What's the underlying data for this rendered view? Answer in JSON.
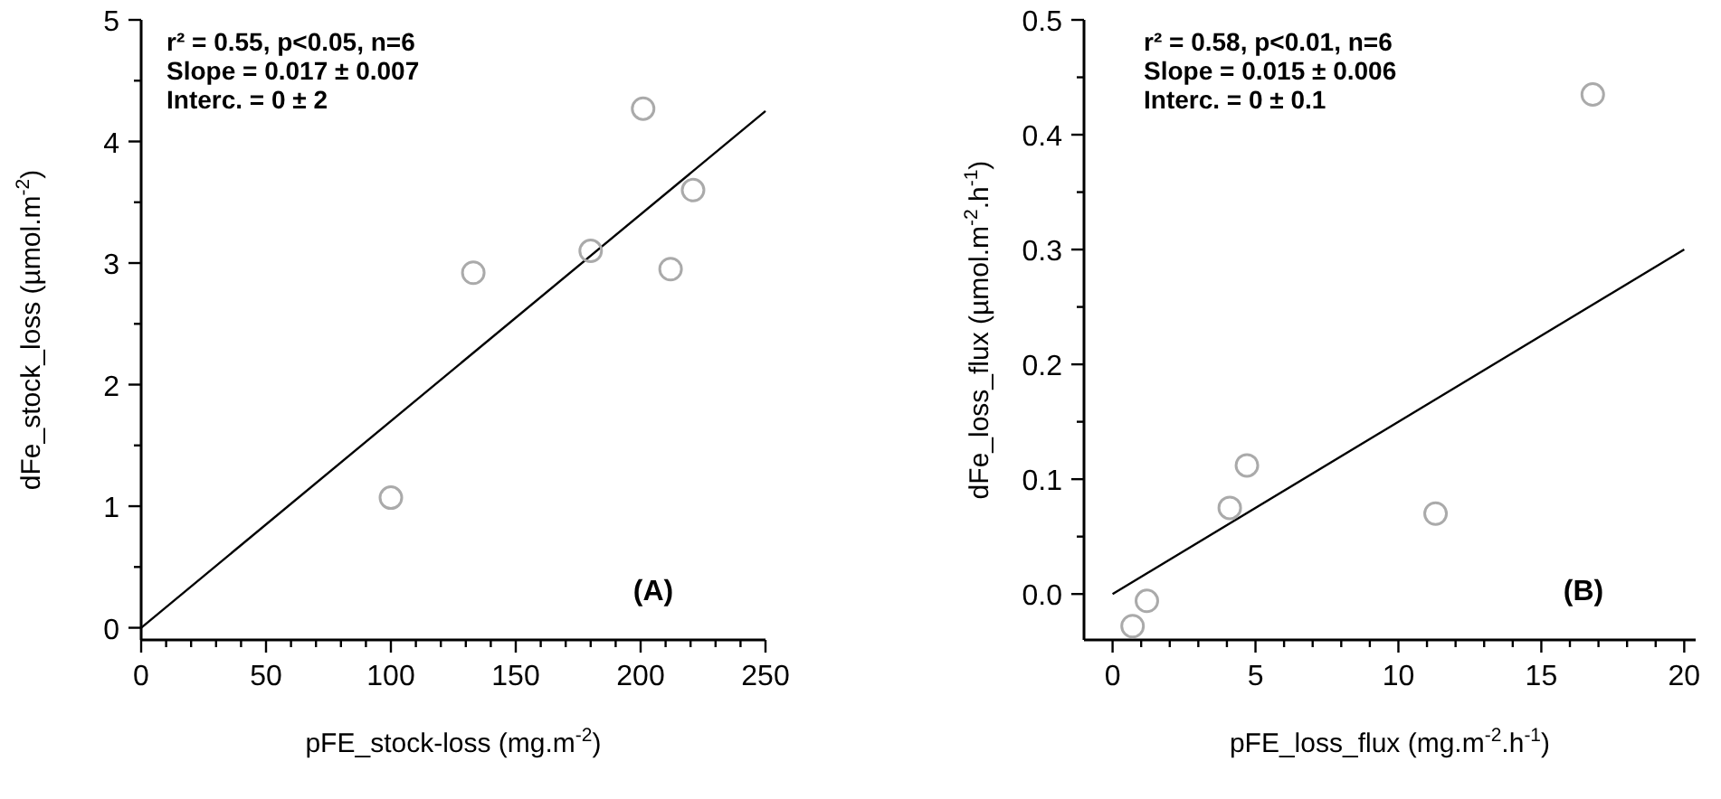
{
  "chart_data": [
    {
      "type": "scatter",
      "xlabel": "pFE_stock-loss (mg.m$^{-2}$)",
      "ylabel": "dFe_stock_loss (µmol.m$^{-2}$)",
      "xlim": [
        0,
        250
      ],
      "ylim": [
        -0.1,
        5
      ],
      "xticks": [
        0,
        {
          "value": 10,
          "label": null
        },
        {
          "value": 20,
          "label": null
        },
        {
          "value": 30,
          "label": null
        },
        {
          "value": 40,
          "label": null
        },
        50,
        {
          "value": 60,
          "label": null
        },
        {
          "value": 70,
          "label": null
        },
        {
          "value": 80,
          "label": null
        },
        {
          "value": 90,
          "label": null
        },
        100,
        {
          "value": 110,
          "label": null
        },
        {
          "value": 120,
          "label": null
        },
        {
          "value": 130,
          "label": null
        },
        {
          "value": 140,
          "label": null
        },
        150,
        {
          "value": 160,
          "label": null
        },
        {
          "value": 170,
          "label": null
        },
        {
          "value": 180,
          "label": null
        },
        {
          "value": 190,
          "label": null
        },
        200,
        {
          "value": 210,
          "label": null
        },
        {
          "value": 220,
          "label": null
        },
        {
          "value": 230,
          "label": null
        },
        {
          "value": 240,
          "label": null
        },
        250
      ],
      "yticks": [
        0,
        {
          "value": 0.5,
          "label": null
        },
        1,
        {
          "value": 1.5,
          "label": null
        },
        2,
        {
          "value": 2.5,
          "label": null
        },
        3,
        {
          "value": 3.5,
          "label": null
        },
        4,
        {
          "value": 4.5,
          "label": null
        },
        5
      ],
      "series": [
        {
          "color": "#aaaaaa",
          "marker": "circle",
          "x": [
            100,
            133,
            180,
            201,
            212,
            221
          ],
          "values": [
            1.07,
            2.92,
            3.1,
            4.27,
            2.95,
            3.6
          ]
        },
        {
          "type": "line",
          "color": "#000000",
          "line_style": "solid",
          "x": [
            0,
            250
          ],
          "values": [
            0,
            4.25
          ]
        }
      ],
      "annotations": [
        "r² = 0.55, p<0.05, n=6",
        "Slope = 0.017 ± 0.007",
        "Interc. = 0 ± 2",
        "(A)"
      ]
    },
    {
      "type": "scatter",
      "xlabel": "pFE_loss_flux (mg.m$^{-2}$.h$^{-1}$)",
      "ylabel": "dFe_loss_flux (µmol.m$^{-2}$.h$^{-1}$)",
      "xlim": [
        -1,
        20.4
      ],
      "ylim": [
        -0.04,
        0.5
      ],
      "xticks": [
        0,
        {
          "value": 1,
          "label": null
        },
        {
          "value": 2,
          "label": null
        },
        {
          "value": 3,
          "label": null
        },
        {
          "value": 4,
          "label": null
        },
        5,
        {
          "value": 6,
          "label": null
        },
        {
          "value": 7,
          "label": null
        },
        {
          "value": 8,
          "label": null
        },
        {
          "value": 9,
          "label": null
        },
        10,
        {
          "value": 11,
          "label": null
        },
        {
          "value": 12,
          "label": null
        },
        {
          "value": 13,
          "label": null
        },
        {
          "value": 14,
          "label": null
        },
        15,
        {
          "value": 16,
          "label": null
        },
        {
          "value": 17,
          "label": null
        },
        {
          "value": 18,
          "label": null
        },
        {
          "value": 19,
          "label": null
        },
        20
      ],
      "yticks": [
        {
          "value": 0,
          "label": "0.0"
        },
        {
          "value": 0.05,
          "label": null
        },
        0.1,
        {
          "value": 0.15,
          "label": null
        },
        0.2,
        {
          "value": 0.25,
          "label": null
        },
        0.3,
        {
          "value": 0.35,
          "label": null
        },
        0.4,
        {
          "value": 0.45,
          "label": null
        },
        0.5
      ],
      "series": [
        {
          "color": "#aaaaaa",
          "marker": "circle",
          "x": [
            0.7,
            1.2,
            4.1,
            4.7,
            11.3,
            16.8
          ],
          "values": [
            -0.028,
            -0.006,
            0.075,
            0.112,
            0.07,
            0.435
          ]
        },
        {
          "type": "line",
          "color": "#000000",
          "line_style": "solid",
          "x": [
            0,
            20
          ],
          "values": [
            0,
            0.3
          ]
        }
      ],
      "annotations": [
        "r² = 0.58, p<0.01, n=6",
        "Slope = 0.015 ± 0.006",
        "Interc. = 0 ± 0.1",
        "(B)"
      ]
    }
  ]
}
